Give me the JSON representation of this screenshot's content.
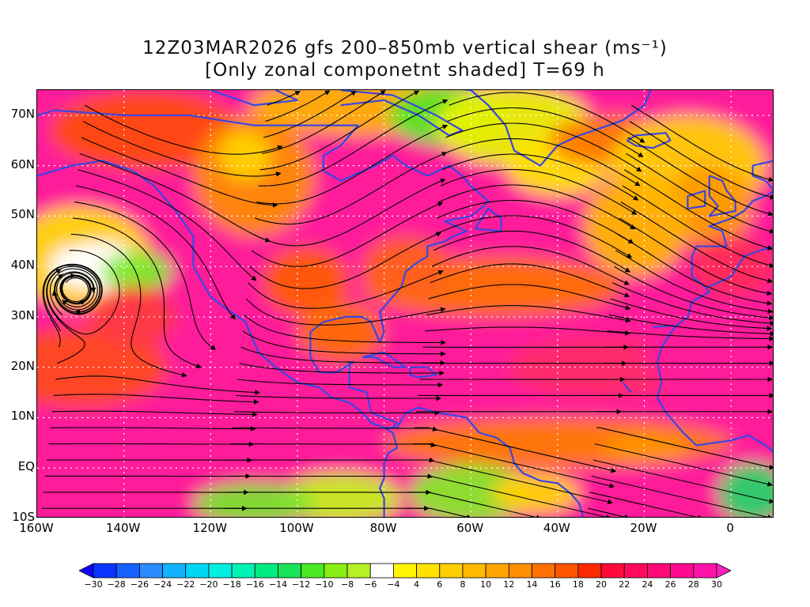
{
  "title": {
    "line1": "12Z03MAR2026 gfs 200–850mb vertical shear (ms⁻¹)",
    "line2": "[Only zonal componetnt shaded] T=69 h"
  },
  "map": {
    "projection": "cylindrical",
    "lon_range": [
      -160,
      10
    ],
    "lat_range": [
      -10,
      75
    ],
    "lat_labels": [
      "70N",
      "60N",
      "50N",
      "40N",
      "30N",
      "20N",
      "10N",
      "EQ",
      "10S"
    ],
    "lat_values": [
      70,
      60,
      50,
      40,
      30,
      20,
      10,
      0,
      -10
    ],
    "lon_labels": [
      "160W",
      "140W",
      "120W",
      "100W",
      "80W",
      "60W",
      "40W",
      "20W",
      "0"
    ],
    "lon_values": [
      -160,
      -140,
      -120,
      -100,
      -80,
      -60,
      -40,
      -20,
      0
    ],
    "field": "zonal component of 200-850mb shear (shaded)",
    "overlays": [
      "streamlines",
      "coastlines",
      "country borders",
      "gridlines"
    ]
  },
  "colors": {
    "coastline": "#3a47e0",
    "contour": "#8a2a9a",
    "streamline": "#000000",
    "grid": "#ffffff"
  },
  "colorbar": {
    "labels": [
      "−30",
      "−28",
      "−26",
      "−24",
      "−22",
      "−20",
      "−18",
      "−16",
      "−14",
      "−12",
      "−10",
      "−8",
      "−6",
      "−4",
      "4",
      "6",
      "8",
      "10",
      "12",
      "14",
      "16",
      "18",
      "20",
      "22",
      "24",
      "26",
      "28",
      "30"
    ],
    "colors": [
      "#1200ff",
      "#0a34ff",
      "#1662ff",
      "#2a8cff",
      "#12b2ff",
      "#00d7f5",
      "#00efe0",
      "#00f3b4",
      "#00eb80",
      "#18e45a",
      "#4aeb22",
      "#88ee14",
      "#b6f026",
      "#ffffff",
      "#fff500",
      "#ffe200",
      "#ffce00",
      "#ffba00",
      "#ffa500",
      "#ff8e00",
      "#ff7200",
      "#ff5500",
      "#ff2a00",
      "#ff0a3a",
      "#ff0a5a",
      "#ff0a78",
      "#ff0a90",
      "#ff12a8",
      "#ff1fbe"
    ]
  }
}
